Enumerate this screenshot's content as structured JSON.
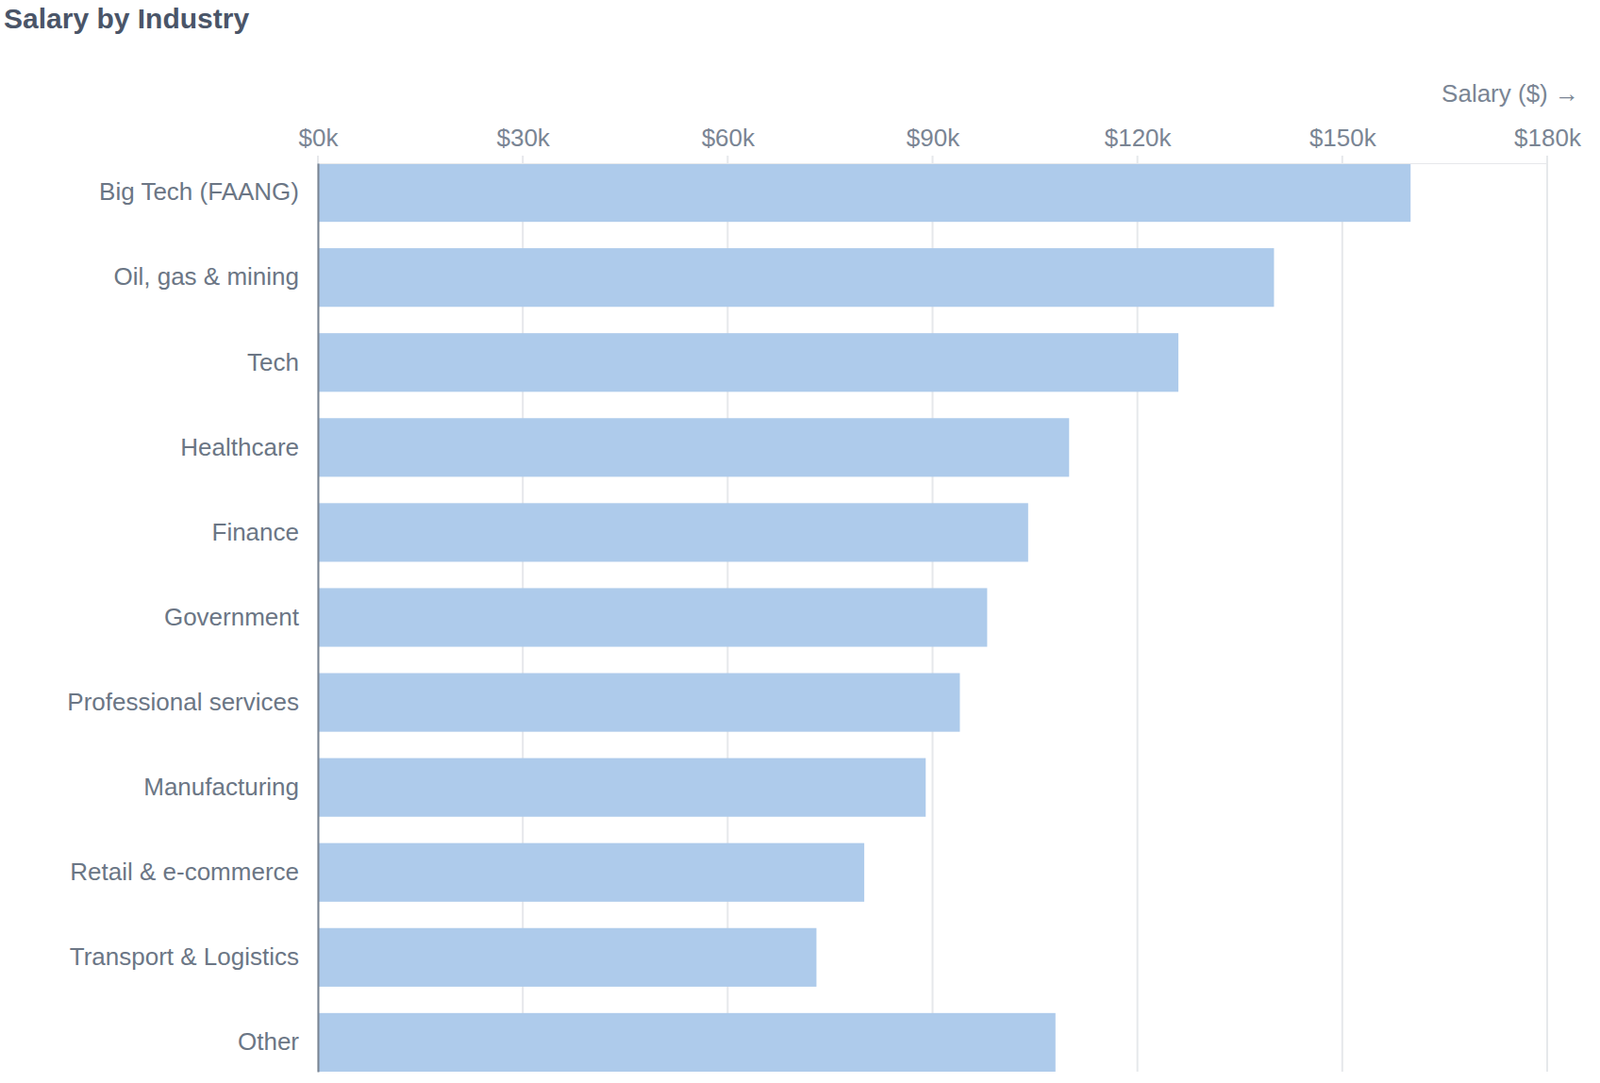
{
  "chart_data": {
    "type": "bar",
    "title": "Salary by Industry",
    "x_label": "Salary ($) →",
    "orientation": "horizontal",
    "categories": [
      "Big Tech (FAANG)",
      "Oil, gas & mining",
      "Tech",
      "Healthcare",
      "Finance",
      "Government",
      "Professional services",
      "Manufacturing",
      "Retail & e-commerce",
      "Transport & Logistics",
      "Other"
    ],
    "values": [
      160000,
      140000,
      126000,
      110000,
      104000,
      98000,
      94000,
      89000,
      80000,
      73000,
      108000
    ],
    "color": "#aecbeb",
    "xlim": [
      0,
      180000
    ],
    "xticks": [
      {
        "value": 0,
        "label": "$0k"
      },
      {
        "value": 30000,
        "label": "$30k"
      },
      {
        "value": 60000,
        "label": "$60k"
      },
      {
        "value": 90000,
        "label": "$90k"
      },
      {
        "value": 120000,
        "label": "$120k"
      },
      {
        "value": 150000,
        "label": "$150k"
      },
      {
        "value": 180000,
        "label": "$180k"
      }
    ],
    "grid": true
  }
}
